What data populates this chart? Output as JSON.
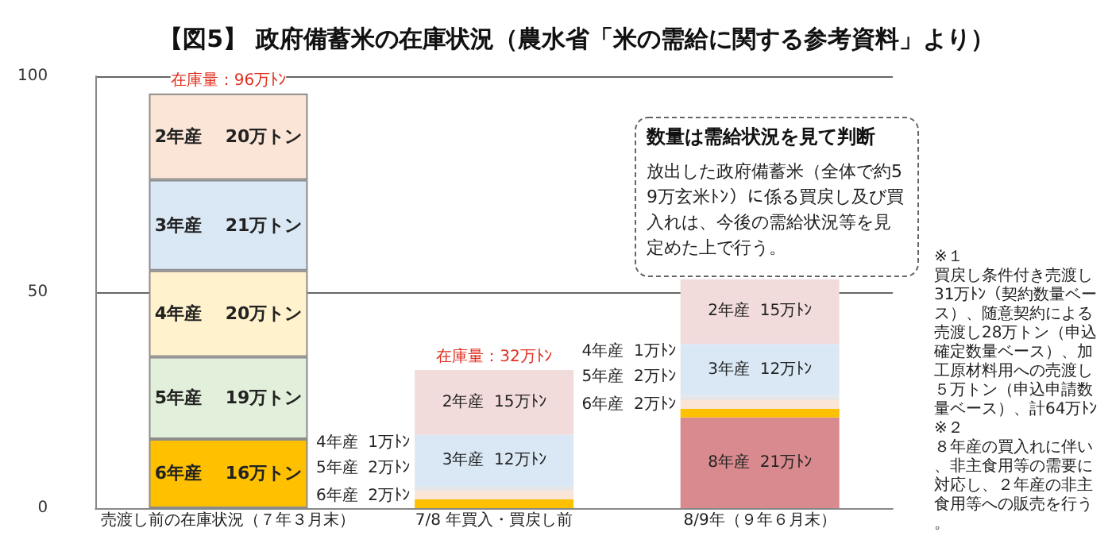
{
  "chart_data": {
    "type": "bar",
    "title": "【図5】 政府備蓄米の在庫状況（農水省「米の需給に関する参考資料」より）",
    "categories": [
      "売渡し前の在庫状況（７年３月末）",
      "7/8 年買入・買戻し前",
      "8/9年（９年６月末）"
    ],
    "stacked": true,
    "series": [
      {
        "name": "8年産",
        "color": "#d98a8e",
        "values": [
          null,
          null,
          21
        ],
        "value_labels": [
          null,
          null,
          "21万ﾄﾝ"
        ]
      },
      {
        "name": "6年産",
        "color": "#ffc000",
        "values": [
          16,
          2,
          2
        ],
        "value_labels": [
          "16万トン",
          "2万ﾄﾝ",
          "2万ﾄﾝ"
        ]
      },
      {
        "name": "5年産",
        "colors": [
          "#e2efda",
          "#fbe5d6",
          "#fbe5d6"
        ],
        "values": [
          19,
          2,
          2
        ],
        "value_labels": [
          "19万トン",
          "2万ﾄﾝ",
          "2万ﾄﾝ"
        ]
      },
      {
        "name": "4年産",
        "colors": [
          "#fff2cc",
          "#e7e6e6",
          "#e7e6e6"
        ],
        "values": [
          20,
          1,
          1
        ],
        "value_labels": [
          "20万トン",
          "1万ﾄﾝ",
          "1万ﾄﾝ"
        ]
      },
      {
        "name": "3年産",
        "color": "#dae8f5",
        "values": [
          21,
          12,
          12
        ],
        "value_labels": [
          "21万トン",
          "12万ﾄﾝ",
          "12万ﾄﾝ"
        ]
      },
      {
        "name": "2年産",
        "colors": [
          "#fbe5d6",
          "#f2dcdb",
          "#f2dcdb"
        ],
        "values": [
          20,
          15,
          15
        ],
        "value_labels": [
          "20万トン",
          "15万ﾄﾝ",
          "15万ﾄﾝ"
        ]
      }
    ],
    "totals": [
      "在庫量：96万ﾄﾝ",
      "在庫量：32万ﾄﾝ",
      null
    ],
    "ylim": [
      0,
      100
    ],
    "yticks": [
      0,
      50,
      100
    ],
    "grid": "y",
    "legend": false,
    "annotations": [
      "数量は需給状況を見て判断",
      "放出した政府備蓄米（全体で約59万玄米ﾄﾝ）に係る買戻し及び買入れは、今後の需給状況等を見定めた上で行う。",
      "※１",
      "買戻し条件付き売渡し31万ﾄﾝ（契約数量ベース）、随意契約による売渡し28万トン（申込確定数量ベース）、加工原材料用への売渡し５万トン（申込申請数量ベース）、計64万ﾄﾝ",
      "※２",
      "８年産の買入れに伴い、非主食用等の需要に対応し、２年産の非主食用等への販売を行う。"
    ]
  }
}
